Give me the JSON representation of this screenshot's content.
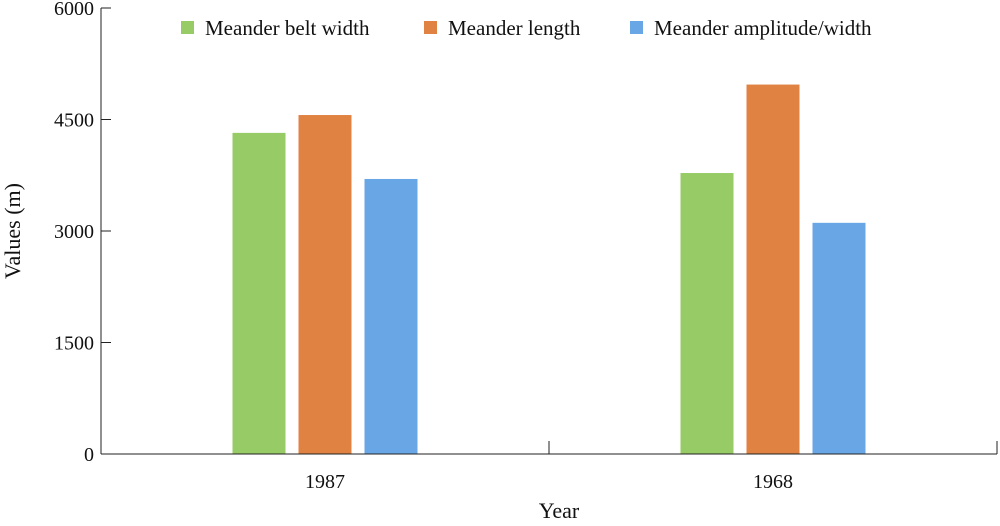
{
  "chart_data": {
    "type": "bar",
    "title": "",
    "xlabel": "Year",
    "ylabel": "Values (m)",
    "categories": [
      "1987",
      "1968"
    ],
    "ylim": [
      0,
      6000
    ],
    "yticks": [
      "0",
      "1500",
      "3000",
      "4500",
      "6000"
    ],
    "ytick_values": [
      0,
      1500,
      3000,
      4500,
      6000
    ],
    "grid": false,
    "legend_position": "top",
    "series": [
      {
        "name": "Meander belt width",
        "color": "#97cb66",
        "values": [
          4320,
          3780
        ]
      },
      {
        "name": "Meander length",
        "color": "#e08242",
        "values": [
          4560,
          4970
        ]
      },
      {
        "name": "Meander amplitude/width",
        "color": "#69a6e6",
        "values": [
          3700,
          3110
        ]
      }
    ]
  }
}
